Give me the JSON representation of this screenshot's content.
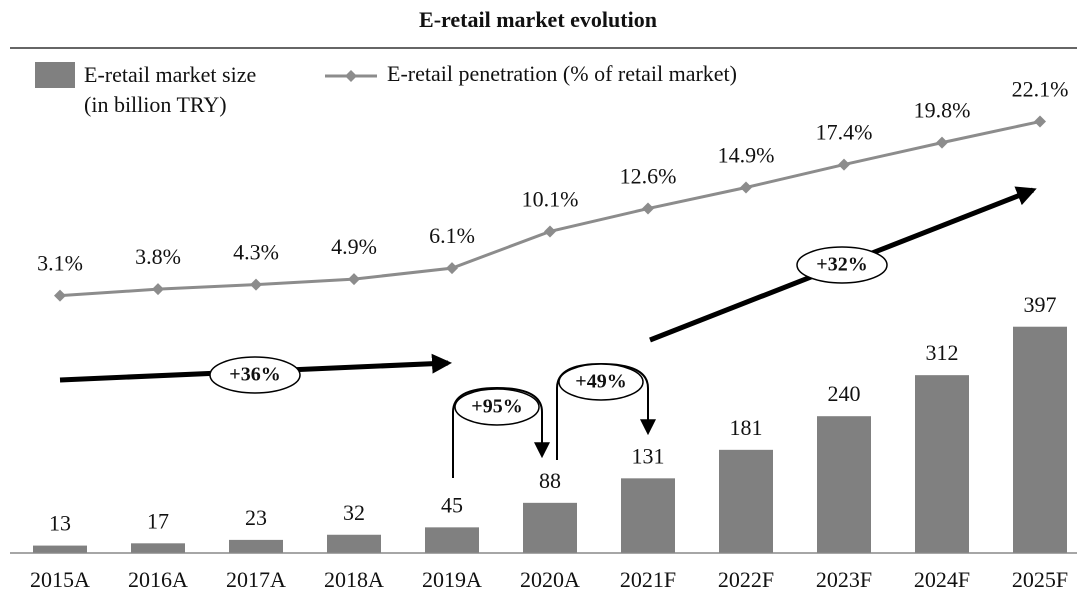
{
  "chart_data": {
    "type": "bar",
    "title": "E-retail market evolution",
    "categories": [
      "2015A",
      "2016A",
      "2017A",
      "2018A",
      "2019A",
      "2020A",
      "2021F",
      "2022F",
      "2023F",
      "2024F",
      "2025F"
    ],
    "series": [
      {
        "name": "E-retail market size (in billion TRY)",
        "type": "bar",
        "color": "#808080",
        "values": [
          13,
          17,
          23,
          32,
          45,
          88,
          131,
          181,
          240,
          312,
          397
        ]
      },
      {
        "name": "E-retail penetration (% of retail market)",
        "type": "line",
        "axis": "y2",
        "color": "#8c8c8c",
        "values": [
          3.1,
          3.8,
          4.3,
          4.9,
          6.1,
          10.1,
          12.6,
          14.9,
          17.4,
          19.8,
          22.1
        ],
        "value_labels": [
          "3.1%",
          "3.8%",
          "4.3%",
          "4.9%",
          "6.1%",
          "10.1%",
          "12.6%",
          "14.9%",
          "17.4%",
          "19.8%",
          "22.1%"
        ]
      }
    ],
    "ylim": [
      0,
      900
    ],
    "y2lim": [
      -25,
      31
    ],
    "annotations": [
      "+36%",
      "+95%",
      "+49%",
      "+32%"
    ]
  }
}
